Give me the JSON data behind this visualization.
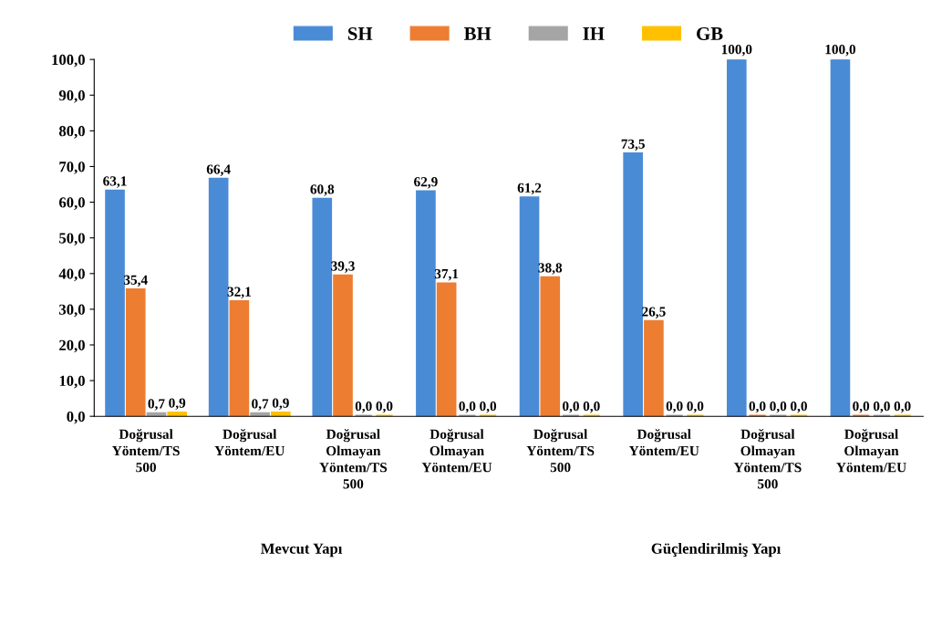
{
  "chart_data": {
    "type": "bar",
    "categories": [
      "Doğrusal\nYöntem/TS\n500",
      "Doğrusal\nYöntem/EU",
      "Doğrusal\nOlmayan\nYöntem/TS\n500",
      "Doğrusal\nOlmayan\nYöntem/EU",
      "Doğrusal\nYöntem/TS\n500",
      "Doğrusal\nYöntem/EU",
      "Doğrusal\nOlmayan\nYöntem/TS\n500",
      "Doğrusal\nOlmayan\nYöntem/EU"
    ],
    "series": [
      {
        "name": "SH",
        "color": "#4a8bd6",
        "values": [
          63.1,
          66.4,
          60.8,
          62.9,
          61.2,
          73.5,
          100.0,
          100.0
        ],
        "value_labels": [
          "63,1",
          "66,4",
          "60,8",
          "62,9",
          "61,2",
          "73,5",
          "100,0",
          "100,0"
        ]
      },
      {
        "name": "BH",
        "color": "#ed7d31",
        "values": [
          35.4,
          32.1,
          39.3,
          37.1,
          38.8,
          26.5,
          0.0,
          0.0
        ],
        "value_labels": [
          "35,4",
          "32,1",
          "39,3",
          "37,1",
          "38,8",
          "26,5",
          "0,0",
          "0,0"
        ]
      },
      {
        "name": "IH",
        "color": "#a5a5a5",
        "values": [
          0.7,
          0.7,
          0.0,
          0.0,
          0.0,
          0.0,
          0.0,
          0.0
        ],
        "value_labels": [
          "0,7",
          "0,7",
          "0,0",
          "0,0",
          "0,0",
          "0,0",
          "0,0",
          "0,0"
        ]
      },
      {
        "name": "GB",
        "color": "#ffc000",
        "values": [
          0.9,
          0.9,
          0.0,
          0.0,
          0.0,
          0.0,
          0.0,
          0.0
        ],
        "value_labels": [
          "0,9",
          "0,9",
          "0,0",
          "0,0",
          "0,0",
          "0,0",
          "0,0",
          "0,0"
        ]
      }
    ],
    "ylim": [
      0,
      100
    ],
    "yticks": [
      {
        "value": 0,
        "label": "0,0"
      },
      {
        "value": 10,
        "label": "10,0"
      },
      {
        "value": 20,
        "label": "20,0"
      },
      {
        "value": 30,
        "label": "30,0"
      },
      {
        "value": 40,
        "label": "40,0"
      },
      {
        "value": 50,
        "label": "50,0"
      },
      {
        "value": 60,
        "label": "60,0"
      },
      {
        "value": 70,
        "label": "70,0"
      },
      {
        "value": 80,
        "label": "80,0"
      },
      {
        "value": 90,
        "label": "90,0"
      },
      {
        "value": 100,
        "label": "100,0"
      }
    ],
    "annotations": [
      "Mevcut Yapı",
      "Güçlendirilmiş Yapı"
    ],
    "grid": false,
    "legend": "top"
  }
}
